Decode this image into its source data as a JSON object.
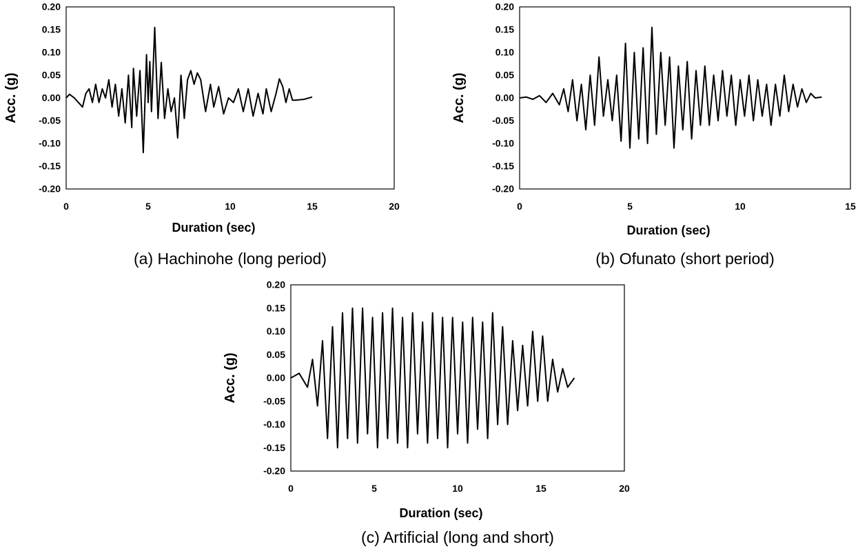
{
  "chart_data": [
    {
      "type": "line",
      "caption": "(a) Hachinohe (long period)",
      "xlabel": "Duration (sec)",
      "ylabel": "Acc. (g)",
      "xlim": [
        0,
        20
      ],
      "ylim": [
        -0.2,
        0.2
      ],
      "x_ticks": [
        "0",
        "5",
        "10",
        "15",
        "20"
      ],
      "y_ticks": [
        "0.20",
        "0.15",
        "0.10",
        "0.05",
        "0.00",
        "-0.05",
        "-0.10",
        "-0.15",
        "-0.20"
      ],
      "grid": false,
      "legend": "none",
      "color": "#000000",
      "series": [
        {
          "x": [
            0,
            0.2,
            0.5,
            0.8,
            1.0,
            1.2,
            1.4,
            1.6,
            1.8,
            2.0,
            2.2,
            2.4,
            2.6,
            2.8,
            3.0,
            3.2,
            3.4,
            3.6,
            3.8,
            4.0,
            4.1,
            4.3,
            4.5,
            4.7,
            4.9,
            5.0,
            5.1,
            5.2,
            5.4,
            5.6,
            5.8,
            6.0,
            6.2,
            6.4,
            6.6,
            6.8,
            7.0,
            7.2,
            7.4,
            7.6,
            7.8,
            8.0,
            8.2,
            8.5,
            8.8,
            9.0,
            9.3,
            9.6,
            9.9,
            10.2,
            10.5,
            10.8,
            11.1,
            11.4,
            11.7,
            12.0,
            12.2,
            12.5,
            12.8,
            13.0,
            13.2,
            13.4,
            13.6,
            13.8,
            14.0,
            14.5,
            15.0
          ],
          "y": [
            0.0,
            0.008,
            0.0,
            -0.012,
            -0.02,
            0.01,
            0.02,
            -0.01,
            0.03,
            -0.01,
            0.02,
            0.0,
            0.04,
            -0.02,
            0.03,
            -0.04,
            0.02,
            -0.055,
            0.05,
            -0.065,
            0.065,
            -0.04,
            0.06,
            -0.12,
            0.095,
            -0.01,
            0.08,
            -0.03,
            0.155,
            -0.045,
            0.078,
            -0.045,
            0.02,
            -0.03,
            0.0,
            -0.088,
            0.05,
            -0.045,
            0.04,
            0.06,
            0.03,
            0.055,
            0.04,
            -0.03,
            0.03,
            -0.02,
            0.025,
            -0.035,
            0.0,
            -0.01,
            0.02,
            -0.03,
            0.02,
            -0.04,
            0.01,
            -0.035,
            0.02,
            -0.03,
            0.01,
            0.042,
            0.025,
            -0.01,
            0.02,
            -0.005,
            -0.005,
            -0.003,
            0.002
          ]
        }
      ]
    },
    {
      "type": "line",
      "caption": "(b) Ofunato (short period)",
      "xlabel": "Duration (sec)",
      "ylabel": "Acc. (g)",
      "xlim": [
        0,
        15
      ],
      "ylim": [
        -0.2,
        0.2
      ],
      "x_ticks": [
        "0",
        "5",
        "10",
        "15"
      ],
      "y_ticks": [
        "0.20",
        "0.15",
        "0.10",
        "0.05",
        "0.00",
        "-0.05",
        "-0.10",
        "-0.15",
        "-0.20"
      ],
      "grid": false,
      "legend": "none",
      "color": "#000000",
      "series": [
        {
          "x": [
            0,
            0.3,
            0.6,
            0.9,
            1.2,
            1.5,
            1.8,
            2.0,
            2.2,
            2.4,
            2.6,
            2.8,
            3.0,
            3.2,
            3.4,
            3.6,
            3.8,
            4.0,
            4.2,
            4.4,
            4.6,
            4.8,
            5.0,
            5.2,
            5.4,
            5.6,
            5.8,
            6.0,
            6.2,
            6.4,
            6.6,
            6.8,
            7.0,
            7.2,
            7.4,
            7.6,
            7.8,
            8.0,
            8.2,
            8.4,
            8.6,
            8.8,
            9.0,
            9.2,
            9.4,
            9.6,
            9.8,
            10.0,
            10.2,
            10.4,
            10.6,
            10.8,
            11.0,
            11.2,
            11.4,
            11.6,
            11.8,
            12.0,
            12.2,
            12.4,
            12.6,
            12.8,
            13.0,
            13.2,
            13.4,
            13.7
          ],
          "y": [
            0.0,
            0.002,
            -0.003,
            0.005,
            -0.01,
            0.01,
            -0.015,
            0.02,
            -0.03,
            0.04,
            -0.05,
            0.03,
            -0.07,
            0.05,
            -0.06,
            0.09,
            -0.04,
            0.04,
            -0.05,
            0.05,
            -0.095,
            0.12,
            -0.11,
            0.1,
            -0.09,
            0.11,
            -0.1,
            0.155,
            -0.08,
            0.1,
            -0.06,
            0.09,
            -0.11,
            0.07,
            -0.07,
            0.08,
            -0.09,
            0.06,
            -0.06,
            0.07,
            -0.06,
            0.05,
            -0.05,
            0.06,
            -0.04,
            0.05,
            -0.06,
            0.04,
            -0.04,
            0.05,
            -0.05,
            0.04,
            -0.04,
            0.03,
            -0.06,
            0.03,
            -0.04,
            0.05,
            -0.03,
            0.03,
            -0.02,
            0.02,
            -0.01,
            0.01,
            0.0,
            0.002
          ]
        }
      ]
    },
    {
      "type": "line",
      "caption": "(c) Artificial (long and short)",
      "xlabel": "Duration (sec)",
      "ylabel": "Acc. (g)",
      "xlim": [
        0,
        20
      ],
      "ylim": [
        -0.2,
        0.2
      ],
      "x_ticks": [
        "0",
        "5",
        "10",
        "15",
        "20"
      ],
      "y_ticks": [
        "0.20",
        "0.15",
        "0.10",
        "0.05",
        "0.00",
        "-0.05",
        "-0.10",
        "-0.15",
        "-0.20"
      ],
      "grid": false,
      "legend": "none",
      "color": "#000000",
      "series": [
        {
          "x": [
            0,
            0.5,
            1.0,
            1.3,
            1.6,
            1.9,
            2.2,
            2.5,
            2.8,
            3.1,
            3.4,
            3.7,
            4.0,
            4.3,
            4.6,
            4.9,
            5.2,
            5.5,
            5.8,
            6.1,
            6.4,
            6.7,
            7.0,
            7.3,
            7.6,
            7.9,
            8.2,
            8.5,
            8.8,
            9.1,
            9.4,
            9.7,
            10.0,
            10.3,
            10.6,
            10.9,
            11.2,
            11.5,
            11.8,
            12.1,
            12.4,
            12.7,
            13.0,
            13.3,
            13.6,
            13.9,
            14.2,
            14.5,
            14.8,
            15.1,
            15.4,
            15.7,
            16.0,
            16.3,
            16.6,
            17.0
          ],
          "y": [
            0.0,
            0.01,
            -0.02,
            0.04,
            -0.06,
            0.08,
            -0.13,
            0.11,
            -0.15,
            0.14,
            -0.13,
            0.15,
            -0.14,
            0.15,
            -0.12,
            0.13,
            -0.15,
            0.14,
            -0.13,
            0.15,
            -0.14,
            0.13,
            -0.15,
            0.14,
            -0.12,
            0.12,
            -0.14,
            0.14,
            -0.13,
            0.13,
            -0.15,
            0.13,
            -0.12,
            0.12,
            -0.14,
            0.13,
            -0.11,
            0.12,
            -0.13,
            0.14,
            -0.1,
            0.11,
            -0.1,
            0.08,
            -0.07,
            0.07,
            -0.06,
            0.1,
            -0.05,
            0.09,
            -0.05,
            0.04,
            -0.03,
            0.02,
            -0.02,
            0.0
          ]
        }
      ]
    }
  ]
}
